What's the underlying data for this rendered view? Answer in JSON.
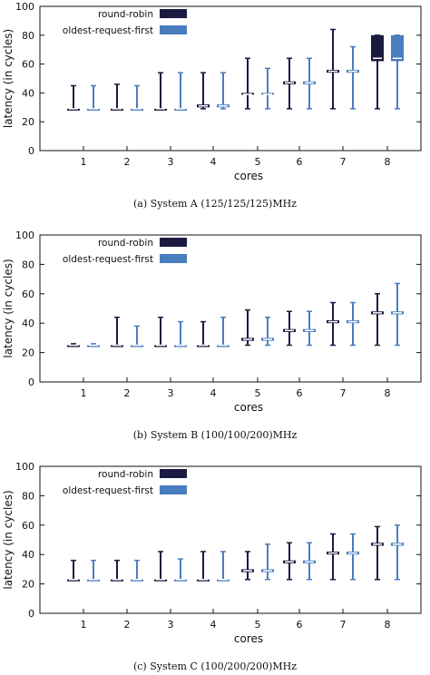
{
  "colors": {
    "rr": "#1b1a40",
    "orf": "#4a7dbd",
    "axis": "#111111"
  },
  "chart_data": [
    {
      "type": "box",
      "caption": "(a) System A (125/125/125)MHz",
      "xlabel": "cores",
      "ylabel": "latency (in cycles)",
      "ylim": [
        0,
        100
      ],
      "yticks": [
        0,
        20,
        40,
        60,
        80,
        100
      ],
      "categories": [
        "1",
        "2",
        "3",
        "4",
        "5",
        "6",
        "7",
        "8"
      ],
      "legend": {
        "position": "top-left",
        "entries": [
          "round-robin",
          "oldest-request-first"
        ]
      },
      "series": [
        {
          "name": "round-robin",
          "min": [
            29,
            29,
            29,
            29,
            29,
            29,
            29,
            29
          ],
          "q1": [
            29,
            29,
            29,
            30,
            39,
            46,
            54,
            62
          ],
          "median": [
            29,
            29,
            29,
            31,
            39,
            47,
            55,
            64
          ],
          "q3": [
            29,
            29,
            29,
            32,
            40,
            48,
            56,
            80
          ],
          "max": [
            45,
            46,
            54,
            54,
            64,
            64,
            84,
            80
          ]
        },
        {
          "name": "oldest-request-first",
          "min": [
            29,
            29,
            29,
            29,
            29,
            29,
            29,
            29
          ],
          "q1": [
            29,
            29,
            29,
            30,
            39,
            46,
            54,
            62
          ],
          "median": [
            29,
            29,
            29,
            31,
            39,
            47,
            55,
            64
          ],
          "q3": [
            29,
            29,
            29,
            32,
            40,
            48,
            56,
            80
          ],
          "max": [
            45,
            45,
            54,
            54,
            57,
            64,
            72,
            80
          ]
        }
      ]
    },
    {
      "type": "box",
      "caption": "(b) System B (100/100/200)MHz",
      "xlabel": "cores",
      "ylabel": "latency (in cycles)",
      "ylim": [
        0,
        100
      ],
      "yticks": [
        0,
        20,
        40,
        60,
        80,
        100
      ],
      "categories": [
        "1",
        "2",
        "3",
        "4",
        "5",
        "6",
        "7",
        "8"
      ],
      "legend": {
        "position": "top-left",
        "entries": [
          "round-robin",
          "oldest-request-first"
        ]
      },
      "series": [
        {
          "name": "round-robin",
          "min": [
            25,
            25,
            25,
            25,
            25,
            25,
            25,
            25
          ],
          "q1": [
            25,
            25,
            25,
            25,
            28,
            34,
            40,
            46
          ],
          "median": [
            25,
            25,
            25,
            25,
            29,
            35,
            41,
            47
          ],
          "q3": [
            25,
            25,
            25,
            25,
            30,
            36,
            42,
            48
          ],
          "max": [
            26,
            44,
            44,
            41,
            49,
            48,
            54,
            60
          ]
        },
        {
          "name": "oldest-request-first",
          "min": [
            25,
            25,
            25,
            25,
            25,
            25,
            25,
            25
          ],
          "q1": [
            25,
            25,
            25,
            25,
            28,
            34,
            40,
            46
          ],
          "median": [
            25,
            25,
            25,
            25,
            29,
            35,
            41,
            47
          ],
          "q3": [
            25,
            25,
            25,
            25,
            30,
            36,
            42,
            48
          ],
          "max": [
            26,
            38,
            41,
            44,
            44,
            48,
            54,
            67
          ]
        }
      ]
    },
    {
      "type": "box",
      "caption": "(c) System C (100/200/200)MHz",
      "xlabel": "cores",
      "ylabel": "latency (in cycles)",
      "ylim": [
        0,
        100
      ],
      "yticks": [
        0,
        20,
        40,
        60,
        80,
        100
      ],
      "categories": [
        "1",
        "2",
        "3",
        "4",
        "5",
        "6",
        "7",
        "8"
      ],
      "legend": {
        "position": "top-left",
        "entries": [
          "round-robin",
          "oldest-request-first"
        ]
      },
      "series": [
        {
          "name": "round-robin",
          "min": [
            23,
            23,
            23,
            23,
            23,
            23,
            23,
            23
          ],
          "q1": [
            23,
            23,
            23,
            23,
            28,
            34,
            40,
            46
          ],
          "median": [
            23,
            23,
            23,
            23,
            29,
            35,
            41,
            47
          ],
          "q3": [
            23,
            23,
            23,
            23,
            30,
            36,
            42,
            48
          ],
          "max": [
            36,
            36,
            42,
            42,
            42,
            48,
            54,
            59
          ]
        },
        {
          "name": "oldest-request-first",
          "min": [
            23,
            23,
            23,
            23,
            23,
            23,
            23,
            23
          ],
          "q1": [
            23,
            23,
            23,
            23,
            28,
            34,
            40,
            46
          ],
          "median": [
            23,
            23,
            23,
            23,
            29,
            35,
            41,
            47
          ],
          "q3": [
            23,
            23,
            23,
            23,
            30,
            36,
            42,
            48
          ],
          "max": [
            36,
            36,
            37,
            42,
            47,
            48,
            54,
            60
          ]
        }
      ]
    }
  ]
}
